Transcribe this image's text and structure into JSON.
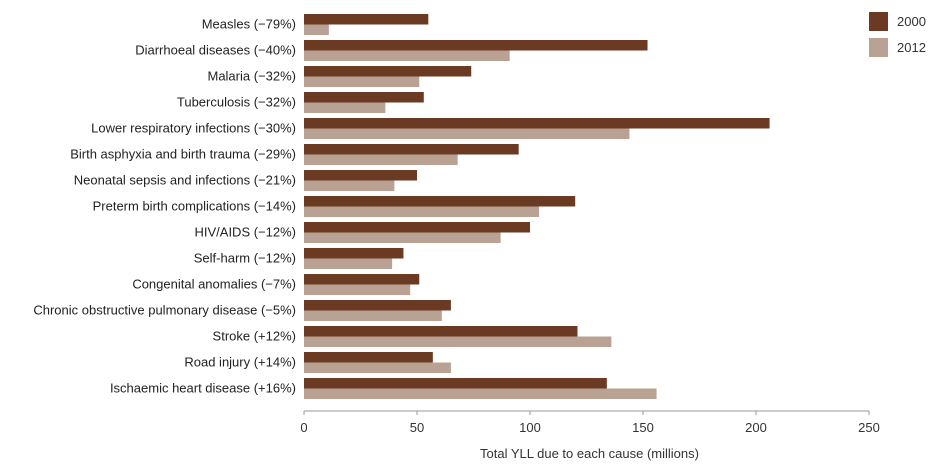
{
  "chart_data": {
    "type": "bar",
    "orientation": "horizontal",
    "title": "",
    "xlabel": "Total YLL due to each cause (millions)",
    "ylabel": "",
    "xlim": [
      0,
      250
    ],
    "xticks": [
      0,
      50,
      100,
      150,
      200,
      250
    ],
    "grid": false,
    "legend_position": "top-right",
    "categories": [
      "Measles (−79%)",
      "Diarrhoeal diseases (−40%)",
      "Malaria (−32%)",
      "Tuberculosis (−32%)",
      "Lower respiratory infections (−30%)",
      "Birth asphyxia and birth trauma (−29%)",
      "Neonatal sepsis and infections (−21%)",
      "Preterm birth complications (−14%)",
      "HIV/AIDS (−12%)",
      "Self-harm (−12%)",
      "Congenital anomalies  (−7%)",
      "Chronic obstructive pulmonary disease   (−5%)",
      "Stroke (+12%)",
      "Road injury (+14%)",
      "Ischaemic heart disease (+16%)"
    ],
    "series": [
      {
        "name": "2000",
        "color": "#6b3a22",
        "values": [
          55,
          152,
          74,
          53,
          206,
          95,
          50,
          120,
          100,
          44,
          51,
          65,
          121,
          57,
          134
        ]
      },
      {
        "name": "2012",
        "color": "#b9a193",
        "values": [
          11,
          91,
          51,
          36,
          144,
          68,
          40,
          104,
          87,
          39,
          47,
          61,
          136,
          65,
          156
        ]
      }
    ]
  }
}
